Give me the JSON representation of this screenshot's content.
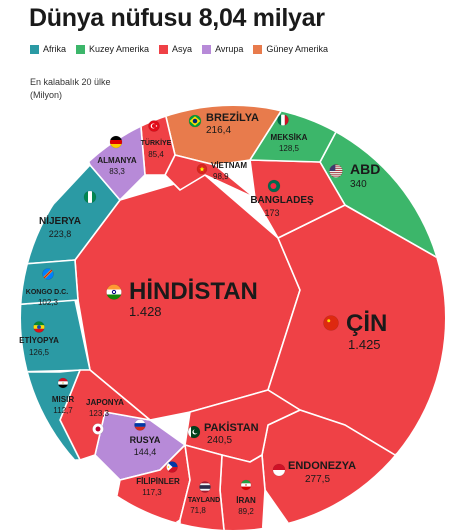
{
  "title": "Dünya nüfusu 8,04 milyar",
  "note": {
    "line1": "En kalabalık 20 ülke",
    "line2": "(Milyon)"
  },
  "regions": [
    {
      "name": "Afrika",
      "color": "#2b9aa4"
    },
    {
      "name": "Kuzey Amerika",
      "color": "#3cb66a"
    },
    {
      "name": "Asya",
      "color": "#ef4146"
    },
    {
      "name": "Avrupa",
      "color": "#b78ad8"
    },
    {
      "name": "Güney Amerika",
      "color": "#e87b4c"
    }
  ],
  "chart_data": {
    "type": "voronoi treemap",
    "unit": "Milyon",
    "countries": [
      {
        "name": "HİNDİSTAN",
        "value": 1428,
        "label": "1.428",
        "region": "Asya",
        "flag": "india-flag"
      },
      {
        "name": "ÇİN",
        "value": 1425,
        "label": "1.425",
        "region": "Asya",
        "flag": "china-flag"
      },
      {
        "name": "ABD",
        "value": 340,
        "label": "340",
        "region": "Kuzey Amerika",
        "flag": "usa-flag"
      },
      {
        "name": "ENDONEZYA",
        "value": 277.5,
        "label": "277,5",
        "region": "Asya",
        "flag": "indonesia-flag"
      },
      {
        "name": "PAKİSTAN",
        "value": 240.5,
        "label": "240,5",
        "region": "Asya",
        "flag": "pakistan-flag"
      },
      {
        "name": "NİJERYA",
        "value": 223.8,
        "label": "223,8",
        "region": "Afrika",
        "flag": "nigeria-flag"
      },
      {
        "name": "BREZİLYA",
        "value": 216.4,
        "label": "216,4",
        "region": "Güney Amerika",
        "flag": "brazil-flag"
      },
      {
        "name": "BANGLADEŞ",
        "value": 173,
        "label": "173",
        "region": "Asya",
        "flag": "bangladesh-flag"
      },
      {
        "name": "RUSYA",
        "value": 144.4,
        "label": "144,4",
        "region": "Avrupa",
        "flag": "russia-flag"
      },
      {
        "name": "MEKSİKA",
        "value": 128.5,
        "label": "128,5",
        "region": "Kuzey Amerika",
        "flag": "mexico-flag"
      },
      {
        "name": "ETİYOPYA",
        "value": 126.5,
        "label": "126,5",
        "region": "Afrika",
        "flag": "ethiopia-flag"
      },
      {
        "name": "JAPONYA",
        "value": 123.3,
        "label": "123,3",
        "region": "Asya",
        "flag": "japan-flag"
      },
      {
        "name": "FİLİPİNLER",
        "value": 117.3,
        "label": "117,3",
        "region": "Asya",
        "flag": "philippines-flag"
      },
      {
        "name": "MISIR",
        "value": 112.7,
        "label": "112,7",
        "region": "Afrika",
        "flag": "egypt-flag"
      },
      {
        "name": "KONGO D.C.",
        "value": 102.3,
        "label": "102,3",
        "region": "Afrika",
        "flag": "dr-congo-flag"
      },
      {
        "name": "VİETNAM",
        "value": 98.9,
        "label": "98,9",
        "region": "Asya",
        "flag": "vietnam-flag"
      },
      {
        "name": "İRAN",
        "value": 89.2,
        "label": "89,2",
        "region": "Asya",
        "flag": "iran-flag"
      },
      {
        "name": "TÜRKİYE",
        "value": 85.4,
        "label": "85,4",
        "region": "Asya",
        "flag": "turkey-flag"
      },
      {
        "name": "ALMANYA",
        "value": 83.3,
        "label": "83,3",
        "region": "Avrupa",
        "flag": "germany-flag"
      },
      {
        "name": "TAYLAND",
        "value": 71.8,
        "label": "71,8",
        "region": "Asya",
        "flag": "thailand-flag"
      }
    ]
  }
}
